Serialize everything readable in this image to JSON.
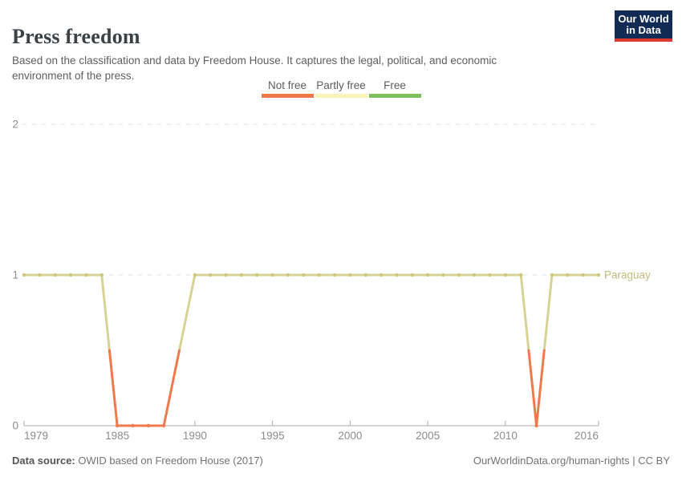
{
  "header": {
    "title": "Press freedom",
    "subtitle": "Based on the classification and data by Freedom House. It captures the legal, political, and economic environment of the press."
  },
  "logo": {
    "line1": "Our World",
    "line2": "in Data",
    "bg_color": "#122b55",
    "accent_color": "#dc3a30"
  },
  "legend": {
    "items": [
      {
        "label": "Not free",
        "color": "#f0794b"
      },
      {
        "label": "Partly free",
        "color": "#f8f5b6"
      },
      {
        "label": "Free",
        "color": "#7dbf5f"
      }
    ]
  },
  "chart_data": {
    "type": "line",
    "title": "Press freedom",
    "entity": "Paraguay",
    "entity_label_color": "#c0bc7a",
    "x": [
      1979,
      1980,
      1981,
      1982,
      1983,
      1984,
      1985,
      1986,
      1987,
      1988,
      1990,
      1991,
      1992,
      1993,
      1994,
      1995,
      1996,
      1997,
      1998,
      1999,
      2000,
      2001,
      2002,
      2003,
      2004,
      2005,
      2006,
      2007,
      2008,
      2009,
      2010,
      2011,
      2012,
      2013,
      2014,
      2015,
      2016
    ],
    "values": [
      1,
      1,
      1,
      1,
      1,
      1,
      0,
      0,
      0,
      0,
      1,
      1,
      1,
      1,
      1,
      1,
      1,
      1,
      1,
      1,
      1,
      1,
      1,
      1,
      1,
      1,
      1,
      1,
      1,
      1,
      1,
      1,
      0,
      1,
      1,
      1,
      1
    ],
    "note_missing_years": [
      1989
    ],
    "value_categories": {
      "0": "Not free",
      "1": "Partly free",
      "2": "Free"
    },
    "value_colors": {
      "0": "#f0794b",
      "1": "#d6d395"
    },
    "marker_colors": {
      "0": "#f0794b",
      "1": "#cbc87e"
    },
    "x_ticks": [
      1979,
      1985,
      1990,
      1995,
      2000,
      2005,
      2010,
      2016
    ],
    "y_ticks": [
      0,
      1,
      2
    ],
    "xlim": [
      1979,
      2016
    ],
    "ylim": [
      0,
      2
    ],
    "grid": "dashed horizontal",
    "axis_color": "#ababab",
    "grid_color": "#e0e0e0",
    "tick_label_color": "#8c8c8c"
  },
  "footer": {
    "source_label": "Data source:",
    "source_text": " OWID based on Freedom House (2017)",
    "credit": "OurWorldinData.org/human-rights | CC BY"
  }
}
